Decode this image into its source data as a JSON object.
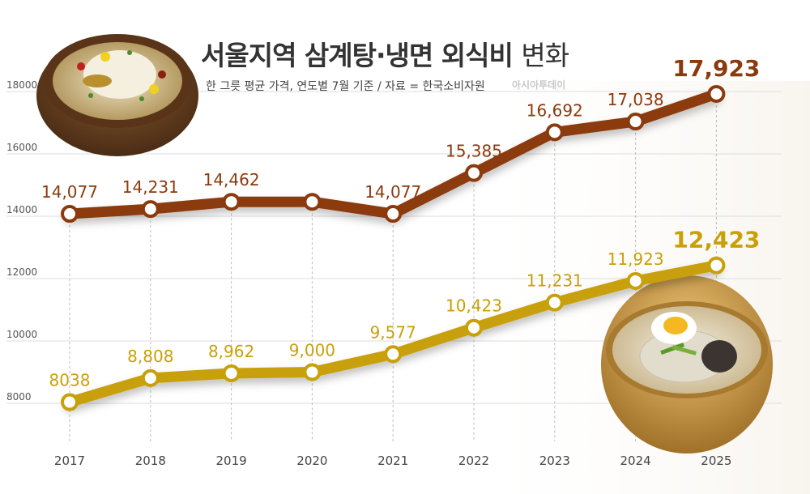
{
  "header": {
    "title_bold": "서울지역 삼계탕·냉면 외식비",
    "title_light": "변화",
    "subtitle": "한 그릇 평균 가격, 연도별 7월 기준 / 자료 = 한국소비자원",
    "watermark": "아시아투데이"
  },
  "colors": {
    "samgyetang": "#8b3a0e",
    "naengmyeon": "#c8a008",
    "grid": "#dddddd"
  },
  "chart_data": {
    "type": "line",
    "categories": [
      "2017",
      "2018",
      "2019",
      "2020",
      "2021",
      "2022",
      "2023",
      "2024",
      "2025"
    ],
    "series": [
      {
        "key": "samgyetang",
        "values": [
          14077,
          14231,
          14462,
          14462,
          14077,
          15385,
          16692,
          17038,
          17923
        ],
        "labels": [
          "14,077",
          "14,231",
          "14,462",
          "",
          "14,077",
          "15,385",
          "16,692",
          "17,038",
          "17,923"
        ]
      },
      {
        "key": "naengmyeon",
        "values": [
          8038,
          8808,
          8962,
          9000,
          9577,
          10423,
          11231,
          11923,
          12423
        ],
        "labels": [
          "8038",
          "8,808",
          "8,962",
          "9,000",
          "9,577",
          "10,423",
          "11,231",
          "11,923",
          "12,423"
        ]
      }
    ],
    "yticks": [
      "8000",
      "10000",
      "12000",
      "14000",
      "16000",
      "18000"
    ],
    "ylim": [
      7000,
      18000
    ],
    "grid": true
  }
}
